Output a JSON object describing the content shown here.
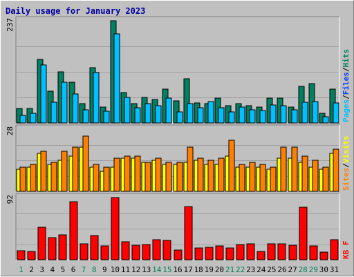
{
  "chart_data": {
    "type": "bar",
    "title": "Daily usage for January 2023",
    "categories": [
      "1",
      "2",
      "3",
      "4",
      "5",
      "6",
      "7",
      "8",
      "9",
      "10",
      "11",
      "12",
      "13",
      "14",
      "15",
      "16",
      "17",
      "18",
      "19",
      "20",
      "21",
      "22",
      "23",
      "24",
      "25",
      "26",
      "27",
      "28",
      "29",
      "30",
      "31"
    ],
    "weekend_days": [
      "1",
      "7",
      "8",
      "14",
      "15",
      "21",
      "22",
      "28",
      "29"
    ],
    "panels": [
      {
        "name": "pages-files-hits",
        "ymax_label": "237",
        "ylim": [
          0,
          237
        ],
        "legend": [
          {
            "text": "Pages",
            "color": "#00c0ff"
          },
          {
            "text": "/",
            "color": "#000000"
          },
          {
            "text": "Files",
            "color": "#0040ff"
          },
          {
            "text": "/",
            "color": "#000000"
          },
          {
            "text": "Hits",
            "color": "#008060"
          }
        ],
        "series": [
          {
            "name": "Hits",
            "color": "#008060",
            "values": [
              34,
              34,
              148,
              74,
              118,
              94,
              45,
              128,
              37,
              237,
              70,
              45,
              60,
              55,
              78,
              52,
              103,
              47,
              45,
              57,
              40,
              45,
              40,
              37,
              57,
              57,
              37,
              85,
              92,
              22,
              78
            ]
          },
          {
            "name": "Files",
            "color": "#00c0ff",
            "values": [
              17,
              22,
              135,
              48,
              95,
              68,
              30,
              117,
              27,
              206,
              60,
              35,
              45,
              40,
              57,
              25,
              45,
              35,
              50,
              35,
              25,
              37,
              30,
              29,
              42,
              40,
              30,
              48,
              50,
              15,
              47
            ]
          }
        ]
      },
      {
        "name": "sites-visits",
        "ymax_label": "28",
        "ylim": [
          0,
          28
        ],
        "legend": [
          {
            "text": "Sites",
            "color": "#ff8000"
          },
          {
            "text": "/",
            "color": "#000000"
          },
          {
            "text": "Visits",
            "color": "#ffff00"
          }
        ],
        "series": [
          {
            "name": "Visits",
            "color": "#ffff00",
            "values": [
              10,
              11,
              17,
              12,
              14,
              16,
              20,
              11,
              9,
              11,
              15,
              15,
              13,
              14,
              12,
              12,
              13,
              14,
              12,
              12,
              16,
              11,
              11,
              11,
              10,
              15,
              15,
              13,
              11,
              10,
              17
            ]
          },
          {
            "name": "Sites",
            "color": "#ff8000",
            "values": [
              11,
              12,
              18,
              13,
              18,
              20,
              25,
              12,
              11,
              15,
              16,
              16,
              13,
              15,
              13,
              13,
              20,
              15,
              14,
              15,
              23,
              12,
              13,
              12,
              11,
              20,
              20,
              16,
              14,
              11,
              19
            ]
          }
        ]
      },
      {
        "name": "kbf",
        "ymax_label": "92",
        "ylim": [
          0,
          92
        ],
        "legend": [
          {
            "text": "KB F",
            "color": "#ff0000"
          }
        ],
        "series": [
          {
            "name": "KB F",
            "color": "#ff0000",
            "values": [
              13,
              12,
              48,
              33,
              37,
              86,
              24,
              36,
              20,
              92,
              27,
              21,
              22,
              30,
              29,
              14,
              79,
              17,
              18,
              20,
              17,
              22,
              23,
              12,
              23,
              23,
              21,
              78,
              20,
              11,
              30
            ]
          }
        ]
      }
    ]
  }
}
